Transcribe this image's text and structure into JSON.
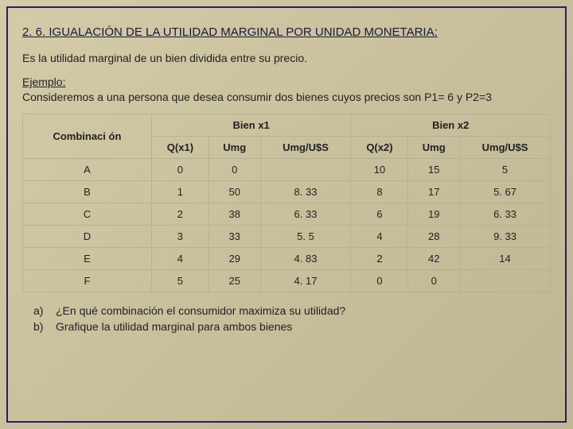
{
  "title": "2. 6. IGUALACIÓN DE LA UTILIDAD MARGINAL POR UNIDAD MONETARIA:",
  "intro": "Es la utilidad marginal de un bien dividida entre su precio.",
  "ejemplo_label": "Ejemplo:",
  "ejemplo_body": "Consideremos a una persona que desea consumir dos bienes cuyos precios son P1= 6 y P2=3",
  "table": {
    "headers": {
      "combinacion": "Combinaci ón",
      "bienx1": "Bien x1",
      "bienx2": "Bien x2",
      "qx1": "Q(x1)",
      "umg1": "Umg",
      "umgus1": "Umg/U$S",
      "qx2": "Q(x2)",
      "umg2": "Umg",
      "umgus2": "Umg/U$S"
    },
    "rows": [
      {
        "c": "A",
        "qx1": "0",
        "umg1": "0",
        "umgus1": "",
        "qx2": "10",
        "umg2": "15",
        "umgus2": "5"
      },
      {
        "c": "B",
        "qx1": "1",
        "umg1": "50",
        "umgus1": "8. 33",
        "qx2": "8",
        "umg2": "17",
        "umgus2": "5. 67"
      },
      {
        "c": "C",
        "qx1": "2",
        "umg1": "38",
        "umgus1": "6. 33",
        "qx2": "6",
        "umg2": "19",
        "umgus2": "6. 33"
      },
      {
        "c": "D",
        "qx1": "3",
        "umg1": "33",
        "umgus1": "5. 5",
        "qx2": "4",
        "umg2": "28",
        "umgus2": "9. 33"
      },
      {
        "c": "E",
        "qx1": "4",
        "umg1": "29",
        "umgus1": "4. 83",
        "qx2": "2",
        "umg2": "42",
        "umgus2": "14"
      },
      {
        "c": "F",
        "qx1": "5",
        "umg1": "25",
        "umgus1": "4. 17",
        "qx2": "0",
        "umg2": "0",
        "umgus2": ""
      }
    ]
  },
  "questions": {
    "a_letter": "a)",
    "a_text": "¿En qué combinación el consumidor maximiza su utilidad?",
    "b_letter": "b)",
    "b_text": "Grafique la utilidad marginal para ambos bienes"
  },
  "colors": {
    "border": "#2a1f5c",
    "text": "#222222",
    "cell_border": "#b8b090"
  }
}
